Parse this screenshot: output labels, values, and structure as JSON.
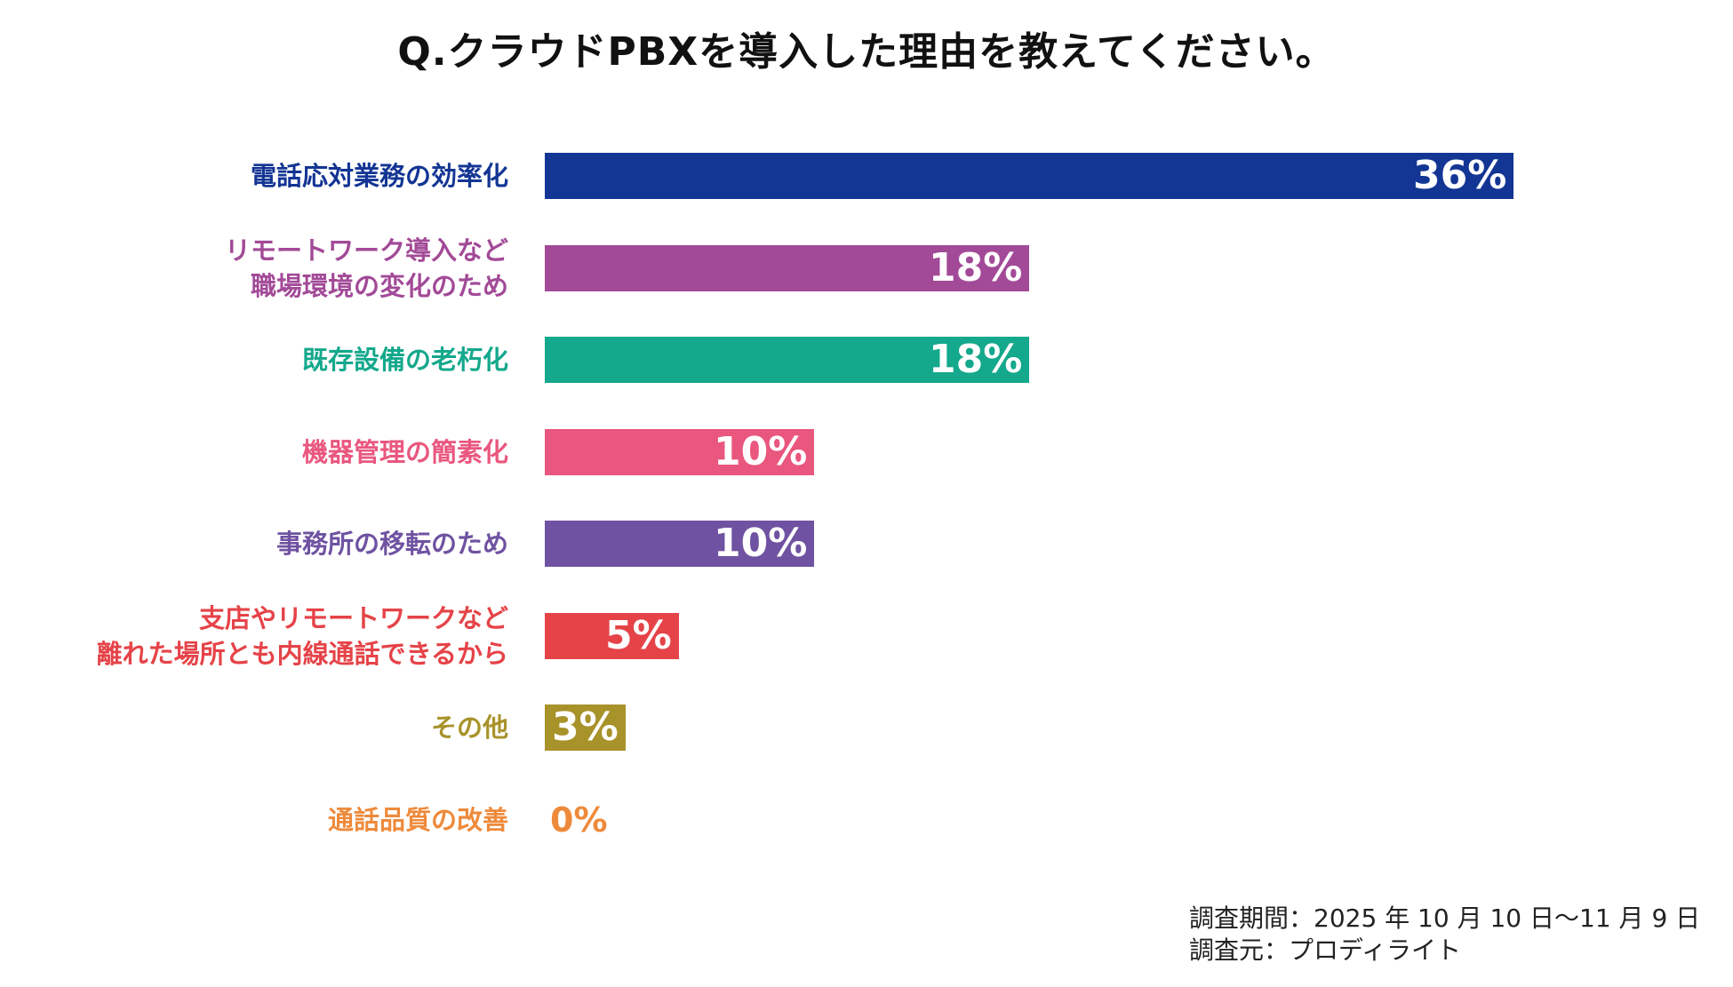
{
  "title": "Q.クラウドPBXを導入した理由を教えてください。",
  "chart_data": {
    "type": "bar",
    "orientation": "horizontal",
    "title": "Q.クラウドPBXを導入した理由を教えてください。",
    "unit": "%",
    "xlim": [
      0,
      40
    ],
    "categories": [
      [
        "電話応対業務の効率化"
      ],
      [
        "リモートワーク導入など",
        "職場環境の変化のため"
      ],
      [
        "既存設備の老朽化"
      ],
      [
        "機器管理の簡素化"
      ],
      [
        "事務所の移転のため"
      ],
      [
        "支店やリモートワークなど",
        "離れた場所とも内線通話できるから"
      ],
      [
        "その他"
      ],
      [
        "通話品質の改善"
      ]
    ],
    "values": [
      36,
      18,
      18,
      10,
      10,
      5,
      3,
      0
    ],
    "value_labels": [
      "36%",
      "18%",
      "18%",
      "10%",
      "10%",
      "5%",
      "3%",
      "0%"
    ],
    "colors": [
      "#133594",
      "#A24A97",
      "#14A88C",
      "#E9577E",
      "#6F52A1",
      "#E54348",
      "#A8922A",
      "#EE8A3B"
    ]
  },
  "footnote": {
    "period": "調査期間：2025 年 10 月 10 日〜11 月 9 日",
    "source": "調査元：プロディライト"
  }
}
